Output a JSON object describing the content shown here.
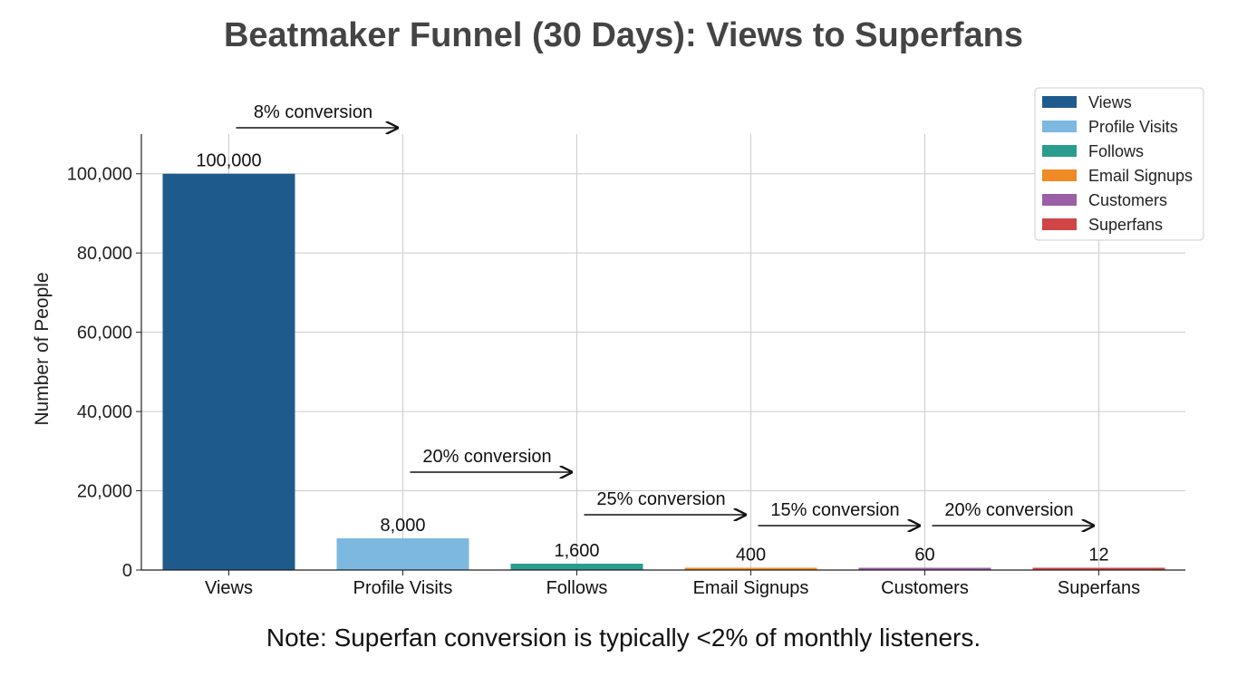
{
  "chart_data": {
    "type": "bar",
    "title": "Beatmaker Funnel (30 Days): Views to Superfans",
    "xlabel": "",
    "ylabel": "Number of People",
    "ylim": [
      0,
      110000
    ],
    "yticks": [
      0,
      20000,
      40000,
      60000,
      80000,
      100000
    ],
    "ytick_labels": [
      "0",
      "20,000",
      "40,000",
      "60,000",
      "80,000",
      "100,000"
    ],
    "categories": [
      "Views",
      "Profile Visits",
      "Follows",
      "Email Signups",
      "Customers",
      "Superfans"
    ],
    "values": [
      100000,
      8000,
      1600,
      400,
      60,
      12
    ],
    "value_labels": [
      "100,000",
      "8,000",
      "1,600",
      "400",
      "60",
      "12"
    ],
    "colors": [
      "#1f5a8c",
      "#7db8e0",
      "#2a9d8f",
      "#f08a24",
      "#9b5fa6",
      "#d04545"
    ],
    "conversions": [
      {
        "label": "8% conversion",
        "from": "Views",
        "to": "Profile Visits"
      },
      {
        "label": "20% conversion",
        "from": "Profile Visits",
        "to": "Follows"
      },
      {
        "label": "25% conversion",
        "from": "Follows",
        "to": "Email Signups"
      },
      {
        "label": "15% conversion",
        "from": "Email Signups",
        "to": "Customers"
      },
      {
        "label": "20% conversion",
        "from": "Customers",
        "to": "Superfans"
      }
    ],
    "legend": {
      "placement": "top-right",
      "entries": [
        "Views",
        "Profile Visits",
        "Follows",
        "Email Signups",
        "Customers",
        "Superfans"
      ]
    },
    "grid": true
  },
  "note": "Note: Superfan conversion is typically <2% of monthly listeners."
}
